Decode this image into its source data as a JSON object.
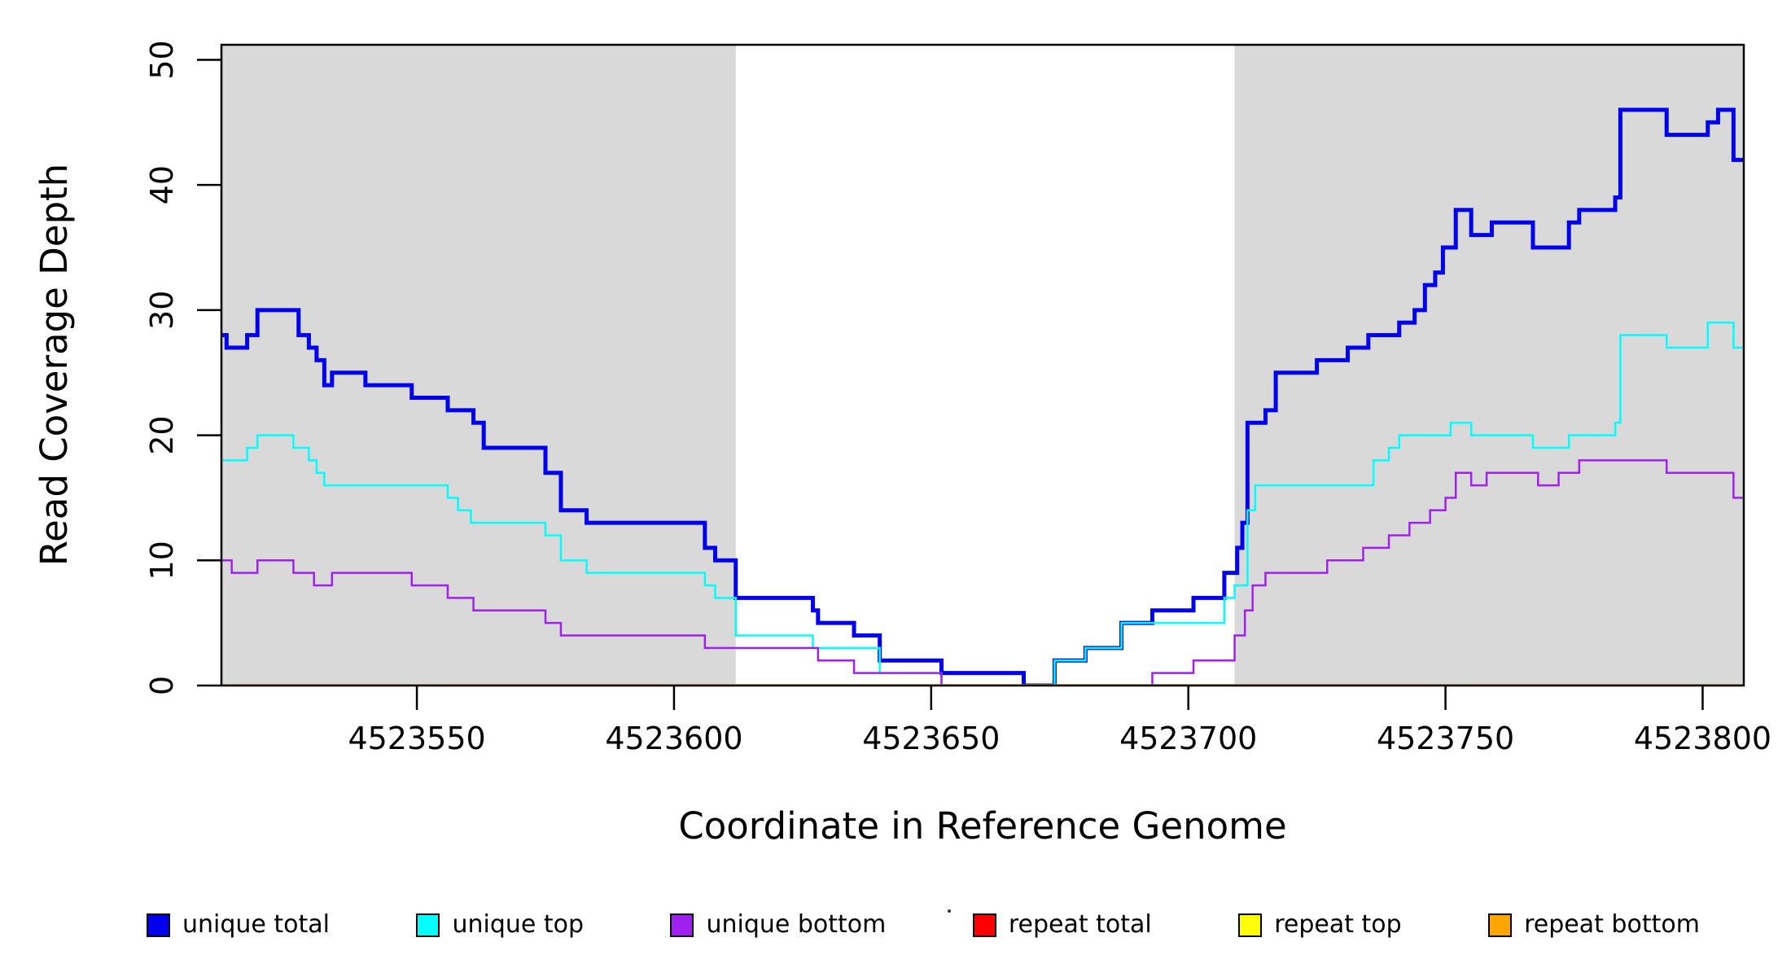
{
  "chart_data": {
    "type": "line",
    "subtype": "step-after",
    "title": "",
    "xlabel": "Coordinate in Reference Genome",
    "ylabel": "Read Coverage Depth",
    "x_range": [
      4523512,
      4523808
    ],
    "y_range": [
      0,
      51.2
    ],
    "x_ticks": [
      4523550,
      4523600,
      4523650,
      4523700,
      4523750,
      4523800
    ],
    "y_ticks": [
      0,
      10,
      20,
      30,
      40,
      50
    ],
    "grid": false,
    "legend_position": "bottom",
    "plot_background": "#ffffff",
    "highlight_bands": {
      "color": "#d9d9d9",
      "regions": [
        [
          4523512,
          4523612
        ],
        [
          4523709,
          4523808
        ]
      ]
    },
    "series": [
      {
        "name": "unique total",
        "color": "#0000ee",
        "line_width": 5,
        "steps": [
          [
            4523512,
            28
          ],
          [
            4523513,
            27
          ],
          [
            4523517,
            28
          ],
          [
            4523519,
            30
          ],
          [
            4523527,
            28
          ],
          [
            4523529,
            27
          ],
          [
            4523530.5,
            26
          ],
          [
            4523532,
            24
          ],
          [
            4523533.5,
            25
          ],
          [
            4523540,
            24
          ],
          [
            4523549,
            23
          ],
          [
            4523556,
            22
          ],
          [
            4523561,
            21
          ],
          [
            4523563,
            19
          ],
          [
            4523575,
            17
          ],
          [
            4523578,
            14
          ],
          [
            4523583,
            13
          ],
          [
            4523606,
            11
          ],
          [
            4523608,
            10
          ],
          [
            4523612,
            7
          ],
          [
            4523627,
            6
          ],
          [
            4523628,
            5
          ],
          [
            4523635,
            4
          ],
          [
            4523640,
            2
          ],
          [
            4523652,
            1
          ],
          [
            4523668,
            0
          ],
          [
            4523674,
            2
          ],
          [
            4523680,
            3
          ],
          [
            4523687,
            5
          ],
          [
            4523693,
            6
          ],
          [
            4523701,
            7
          ],
          [
            4523707,
            9
          ],
          [
            4523709.5,
            11
          ],
          [
            4523710.5,
            13
          ],
          [
            4523711.5,
            21
          ],
          [
            4523715,
            22
          ],
          [
            4523717,
            25
          ],
          [
            4523725,
            26
          ],
          [
            4523731,
            27
          ],
          [
            4523735,
            28
          ],
          [
            4523741,
            29
          ],
          [
            4523744,
            30
          ],
          [
            4523746,
            32
          ],
          [
            4523748,
            33
          ],
          [
            4523749.5,
            35
          ],
          [
            4523752,
            38
          ],
          [
            4523755,
            36
          ],
          [
            4523759,
            37
          ],
          [
            4523767,
            35
          ],
          [
            4523774,
            37
          ],
          [
            4523776,
            38
          ],
          [
            4523783,
            39
          ],
          [
            4523784,
            46
          ],
          [
            4523793,
            44
          ],
          [
            4523801,
            45
          ],
          [
            4523803,
            46
          ],
          [
            4523806,
            42
          ]
        ]
      },
      {
        "name": "unique top",
        "color": "#00ffff",
        "line_width": 2.5,
        "steps": [
          [
            4523512,
            18
          ],
          [
            4523517,
            19
          ],
          [
            4523519,
            20
          ],
          [
            4523526,
            19
          ],
          [
            4523529,
            18
          ],
          [
            4523530.5,
            17
          ],
          [
            4523532,
            16
          ],
          [
            4523556,
            15
          ],
          [
            4523558,
            14
          ],
          [
            4523560.5,
            13
          ],
          [
            4523575,
            12
          ],
          [
            4523578,
            10
          ],
          [
            4523583,
            9
          ],
          [
            4523606,
            8
          ],
          [
            4523608,
            7
          ],
          [
            4523612,
            4
          ],
          [
            4523627,
            3
          ],
          [
            4523640,
            1
          ],
          [
            4523652,
            0
          ],
          [
            4523674,
            2
          ],
          [
            4523680,
            3
          ],
          [
            4523687,
            5
          ],
          [
            4523707,
            7
          ],
          [
            4523709,
            8
          ],
          [
            4523711.5,
            14
          ],
          [
            4523713,
            16
          ],
          [
            4523736,
            18
          ],
          [
            4523739,
            19
          ],
          [
            4523741,
            20
          ],
          [
            4523751,
            21
          ],
          [
            4523755,
            20
          ],
          [
            4523767,
            19
          ],
          [
            4523774,
            20
          ],
          [
            4523783,
            21
          ],
          [
            4523784,
            28
          ],
          [
            4523793,
            27
          ],
          [
            4523801,
            29
          ],
          [
            4523806,
            27
          ]
        ]
      },
      {
        "name": "unique bottom",
        "color": "#a020f0",
        "line_width": 2.5,
        "steps": [
          [
            4523512,
            10
          ],
          [
            4523514,
            9
          ],
          [
            4523519,
            10
          ],
          [
            4523526,
            9
          ],
          [
            4523530,
            8
          ],
          [
            4523533.5,
            9
          ],
          [
            4523549,
            8
          ],
          [
            4523556,
            7
          ],
          [
            4523561,
            6
          ],
          [
            4523575,
            5
          ],
          [
            4523578,
            4
          ],
          [
            4523606,
            3
          ],
          [
            4523628,
            2
          ],
          [
            4523635,
            1
          ],
          [
            4523652,
            0
          ],
          [
            4523693,
            1
          ],
          [
            4523701,
            2
          ],
          [
            4523709,
            4
          ],
          [
            4523711,
            6
          ],
          [
            4523712.5,
            8
          ],
          [
            4523715,
            9
          ],
          [
            4523727,
            10
          ],
          [
            4523734,
            11
          ],
          [
            4523739,
            12
          ],
          [
            4523743,
            13
          ],
          [
            4523747,
            14
          ],
          [
            4523750,
            15
          ],
          [
            4523752,
            17
          ],
          [
            4523755,
            16
          ],
          [
            4523758,
            17
          ],
          [
            4523768,
            16
          ],
          [
            4523772,
            17
          ],
          [
            4523776,
            18
          ],
          [
            4523793,
            17
          ],
          [
            4523806,
            15
          ]
        ]
      },
      {
        "name": "repeat total",
        "color": "#ff0000",
        "line_width": 2.5,
        "steps": [
          [
            4523512,
            0
          ]
        ]
      },
      {
        "name": "repeat top",
        "color": "#ffff00",
        "line_width": 2.5,
        "steps": [
          [
            4523512,
            0
          ]
        ]
      },
      {
        "name": "repeat bottom",
        "color": "#ffa500",
        "line_width": 3.5,
        "steps": [
          [
            4523512,
            0
          ]
        ]
      }
    ],
    "legend": [
      {
        "label": "unique total",
        "color": "#0000ee"
      },
      {
        "label": "unique top",
        "color": "#00ffff"
      },
      {
        "label": "unique bottom",
        "color": "#a020f0"
      },
      {
        "label": "repeat total",
        "color": "#ff0000"
      },
      {
        "label": "repeat top",
        "color": "#ffff00"
      },
      {
        "label": "repeat bottom",
        "color": "#ffa500"
      }
    ]
  }
}
